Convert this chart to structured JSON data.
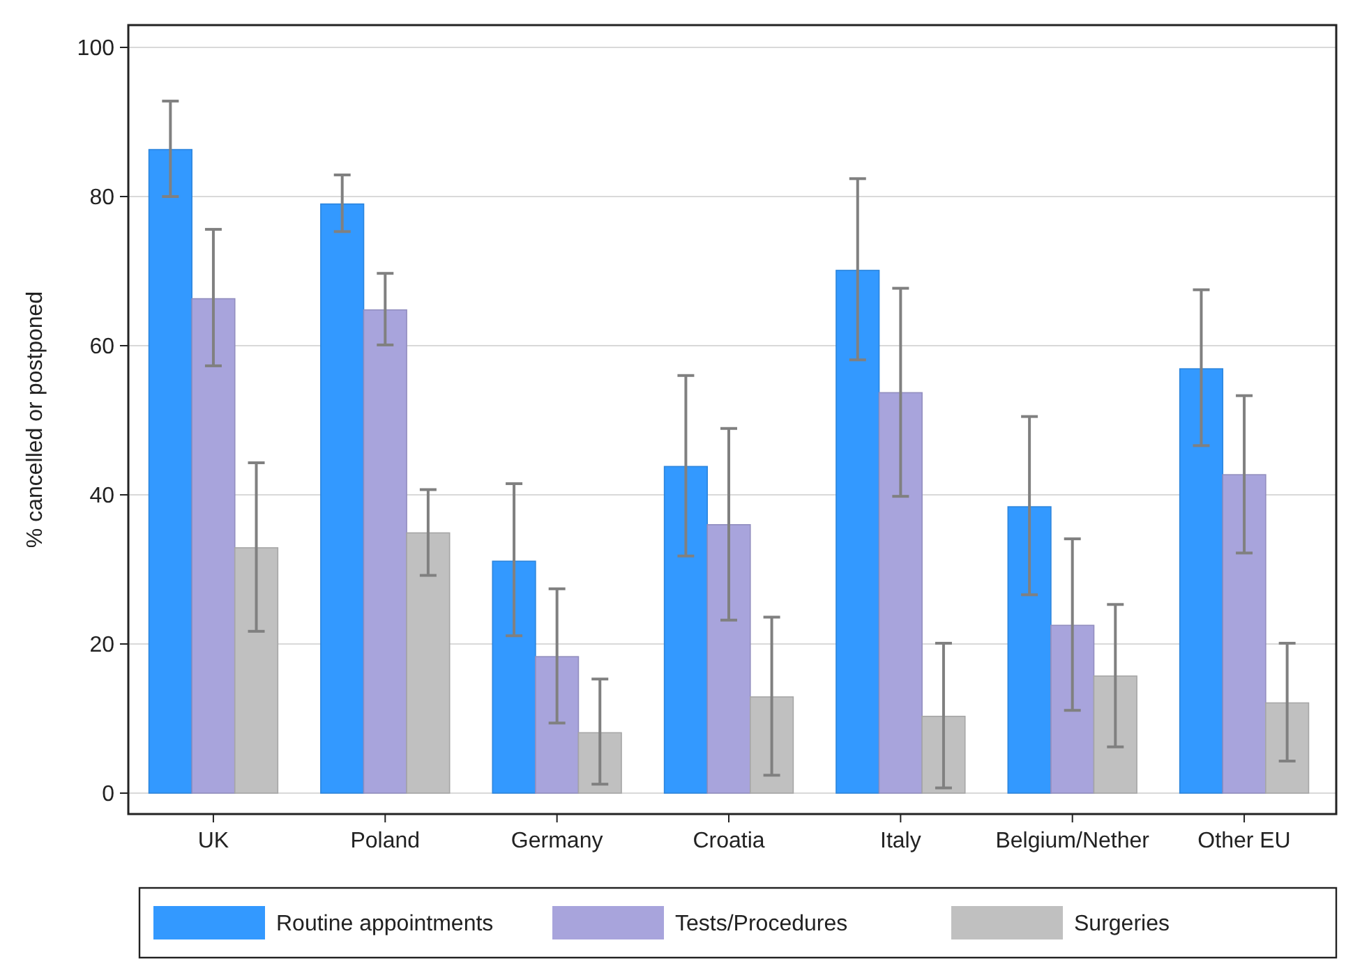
{
  "chart_data": {
    "type": "bar",
    "ylabel": "% cancelled or postponed",
    "categories": [
      "UK",
      "Poland",
      "Germany",
      "Croatia",
      "Italy",
      "Belgium/Nether",
      "Other EU"
    ],
    "series": [
      {
        "name": "Routine appointments",
        "color": "#3399ff",
        "values": [
          86.3,
          79.0,
          31.1,
          43.8,
          70.1,
          38.4,
          56.9
        ],
        "errors": [
          [
            80.0,
            92.8
          ],
          [
            75.3,
            82.9
          ],
          [
            21.1,
            41.5
          ],
          [
            31.8,
            56.0
          ],
          [
            58.1,
            82.4
          ],
          [
            26.6,
            50.5
          ],
          [
            46.6,
            67.5
          ]
        ]
      },
      {
        "name": "Tests/Procedures",
        "color": "#a8a4dc",
        "values": [
          66.3,
          64.8,
          18.3,
          36.0,
          53.7,
          22.5,
          42.7
        ],
        "errors": [
          [
            57.3,
            75.6
          ],
          [
            60.1,
            69.7
          ],
          [
            9.4,
            27.4
          ],
          [
            23.2,
            48.9
          ],
          [
            39.8,
            67.7
          ],
          [
            11.1,
            34.1
          ],
          [
            32.2,
            53.3
          ]
        ]
      },
      {
        "name": "Surgeries",
        "color": "#c0c0c0",
        "values": [
          32.9,
          34.9,
          8.1,
          12.9,
          10.3,
          15.7,
          12.1
        ],
        "errors": [
          [
            21.7,
            44.3
          ],
          [
            29.2,
            40.7
          ],
          [
            1.2,
            15.3
          ],
          [
            2.4,
            23.6
          ],
          [
            0.7,
            20.1
          ],
          [
            6.2,
            25.3
          ],
          [
            4.3,
            20.1
          ]
        ]
      }
    ],
    "ylim": [
      0,
      100
    ],
    "yticks": [
      0,
      20,
      40,
      60,
      80,
      100
    ],
    "grid": "y",
    "legend": "bottom"
  }
}
